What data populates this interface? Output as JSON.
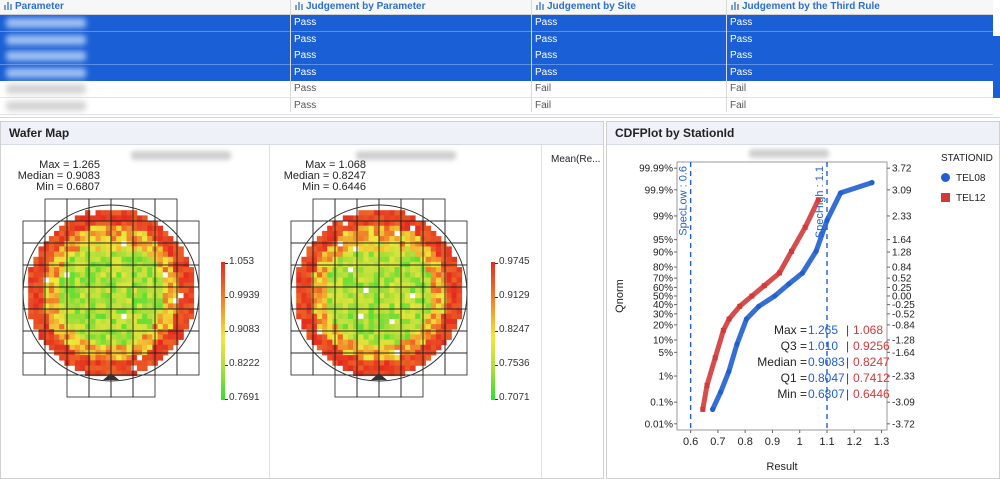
{
  "table": {
    "columns": [
      "Parameter",
      "Judgement by Parameter",
      "Judgement by Site",
      "Judgement by the Third Rule"
    ],
    "rows": [
      {
        "selected": true,
        "values": [
          "Pass",
          "Pass",
          "Pass"
        ]
      },
      {
        "selected": true,
        "values": [
          "Pass",
          "Pass",
          "Pass"
        ]
      },
      {
        "selected": true,
        "values": [
          "Pass",
          "Pass",
          "Pass"
        ]
      },
      {
        "selected": true,
        "values": [
          "Pass",
          "Pass",
          "Pass"
        ]
      },
      {
        "selected": false,
        "values": [
          "Pass",
          "Fail",
          "Fail"
        ]
      },
      {
        "selected": false,
        "values": [
          "Pass",
          "Fail",
          "Fail"
        ]
      }
    ]
  },
  "wafer_panel": {
    "title": "Wafer Map",
    "extra_label": "Mean(Re...",
    "maps": [
      {
        "stats": [
          "Max = 1.265",
          "Median = 0.9083",
          "Min = 0.6807"
        ],
        "legend": [
          "1.053",
          "0.9939",
          "0.9083",
          "0.8222",
          "0.7691"
        ],
        "lo": 0.6807,
        "hi": 1.265
      },
      {
        "stats": [
          "Max = 1.068",
          "Median = 0.8247",
          "Min = 0.6446"
        ],
        "legend": [
          "0.9745",
          "0.9129",
          "0.8247",
          "0.7536",
          "0.7071"
        ],
        "lo": 0.6446,
        "hi": 1.068
      }
    ]
  },
  "cdf_panel": {
    "title": "CDFPlot by StationId",
    "legend_title": "STATIONID",
    "legend": [
      {
        "name": "TEL08",
        "color": "#1f5fcf",
        "shape": "circle"
      },
      {
        "name": "TEL12",
        "color": "#d23a3a",
        "shape": "square"
      }
    ],
    "ylabel": "Qnorm",
    "xlabel": "Result",
    "spec_low_label": "SpecLow : 0.6",
    "spec_high_label": "SpecHigh : 1.1",
    "spec_low": 0.6,
    "spec_high": 1.1,
    "xlim": [
      0.55,
      1.32
    ],
    "x_ticks": [
      0.6,
      0.7,
      0.8,
      0.9,
      1,
      1.1,
      1.2,
      1.3
    ],
    "x_tick_labels": [
      "0.6",
      "0.7",
      "0.8",
      "0.9",
      "1",
      "1.1",
      "1.2",
      "1.3"
    ],
    "left_ticks": [
      {
        "label": "99.99%",
        "z": 3.72
      },
      {
        "label": "99.9%",
        "z": 3.09
      },
      {
        "label": "99%",
        "z": 2.33
      },
      {
        "label": "95%",
        "z": 1.64
      },
      {
        "label": "90%",
        "z": 1.28
      },
      {
        "label": "80%",
        "z": 0.84
      },
      {
        "label": "70%",
        "z": 0.52
      },
      {
        "label": "60%",
        "z": 0.25
      },
      {
        "label": "50%",
        "z": 0
      },
      {
        "label": "40%",
        "z": -0.25
      },
      {
        "label": "30%",
        "z": -0.52
      },
      {
        "label": "20%",
        "z": -0.84
      },
      {
        "label": "10%",
        "z": -1.28
      },
      {
        "label": "5%",
        "z": -1.64
      },
      {
        "label": "1%",
        "z": -2.33
      },
      {
        "label": "0.1%",
        "z": -3.09
      },
      {
        "label": "0.01%",
        "z": -3.72
      }
    ],
    "right_ticks": [
      "3.72",
      "3.09",
      "2.33",
      "1.64",
      "1.28",
      "0.84",
      "0.52",
      "0.25",
      "0.00",
      "-0.25",
      "-0.52",
      "-0.84",
      "-1.28",
      "-1.64",
      "-2.33",
      "-3.09",
      "-3.72"
    ],
    "summary": [
      {
        "label": "Max = ",
        "a": "1.265",
        "b": "1.068"
      },
      {
        "label": "Q3 = ",
        "a": "1.010",
        "b": "0.9256"
      },
      {
        "label": "Median = ",
        "a": "0.9083",
        "b": "0.8247"
      },
      {
        "label": "Q1 = ",
        "a": "0.8047",
        "b": "0.7412"
      },
      {
        "label": "Min = ",
        "a": "0.6807",
        "b": "0.6446"
      }
    ],
    "chart_data": {
      "type": "line",
      "xlabel": "Result",
      "ylabel": "Qnorm",
      "series": [
        {
          "name": "TEL08",
          "x": [
            0.6807,
            0.71,
            0.74,
            0.77,
            0.8047,
            0.85,
            0.9083,
            0.96,
            1.01,
            1.06,
            1.1,
            1.15,
            1.265
          ],
          "y": [
            -3.3,
            -2.8,
            -2.2,
            -1.4,
            -0.67,
            -0.3,
            0,
            0.35,
            0.67,
            1.3,
            2.2,
            3.0,
            3.3
          ]
        },
        {
          "name": "TEL12",
          "x": [
            0.6446,
            0.66,
            0.69,
            0.72,
            0.7412,
            0.78,
            0.8247,
            0.87,
            0.9256,
            0.97,
            1.02,
            1.068
          ],
          "y": [
            -3.3,
            -2.6,
            -1.8,
            -1.0,
            -0.67,
            -0.3,
            0,
            0.3,
            0.67,
            1.3,
            2.0,
            2.8
          ]
        }
      ]
    }
  }
}
